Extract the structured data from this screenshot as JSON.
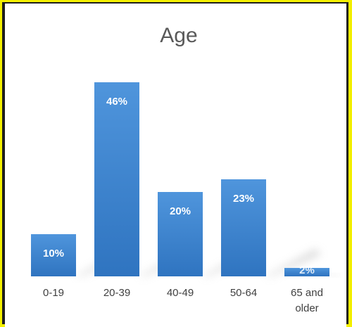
{
  "chart_data": {
    "type": "bar",
    "title": "Age",
    "categories": [
      "0-19",
      "20-39",
      "40-49",
      "50-64",
      "65 and older"
    ],
    "category_lines": [
      [
        "0-19"
      ],
      [
        "20-39"
      ],
      [
        "40-49"
      ],
      [
        "50-64"
      ],
      [
        "65 and",
        "older"
      ]
    ],
    "values": [
      10,
      46,
      20,
      23,
      2
    ],
    "value_labels": [
      "10%",
      "46%",
      "20%",
      "23%",
      "2%"
    ],
    "unit": "%",
    "ylim": [
      0,
      50
    ],
    "grid": false,
    "legend": "none",
    "bar_color": "#3f86d2"
  }
}
